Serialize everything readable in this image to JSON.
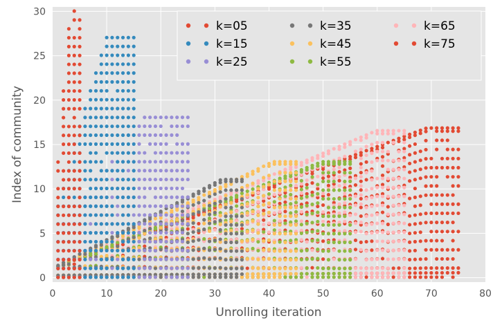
{
  "chart_data": {
    "type": "scatter",
    "title": "",
    "xlabel": "Unrolling iteration",
    "ylabel": "Index of community",
    "xlim": [
      0,
      80
    ],
    "ylim": [
      -0.5,
      30.5
    ],
    "x_ticks": [
      "0",
      "10",
      "20",
      "30",
      "40",
      "50",
      "60",
      "70",
      "80"
    ],
    "y_ticks": [
      "0",
      "5",
      "10",
      "15",
      "20",
      "25",
      "30"
    ],
    "grid": true,
    "background": "#e5e5e5",
    "legend": {
      "position": "top-right",
      "columns": 3
    },
    "series": [
      {
        "name": "k=05",
        "color": "#e24a33",
        "k": 5,
        "x_max": 5,
        "y_max": 30,
        "drift": 0.06,
        "points": [
          [
            1,
            2
          ],
          [
            1,
            10
          ],
          [
            2,
            30
          ],
          [
            3,
            30
          ],
          [
            4,
            29
          ],
          [
            5,
            30
          ],
          [
            2,
            22
          ],
          [
            3,
            17
          ],
          [
            5,
            5
          ],
          [
            3,
            1
          ],
          [
            5,
            0.5
          ]
        ]
      },
      {
        "name": "k=15",
        "color": "#348abd",
        "k": 15,
        "x_max": 15,
        "y_max": 27,
        "drift": 0.1,
        "points": [
          [
            1,
            19
          ],
          [
            2,
            10
          ],
          [
            5,
            27
          ],
          [
            10,
            27
          ],
          [
            15,
            27
          ],
          [
            8,
            22
          ],
          [
            12,
            18
          ],
          [
            15,
            14
          ],
          [
            10,
            5
          ],
          [
            15,
            1.5
          ],
          [
            15,
            0.4
          ]
        ]
      },
      {
        "name": "k=25",
        "color": "#988ed5",
        "k": 25,
        "x_max": 25,
        "y_max": 18,
        "drift": 0.12,
        "points": [
          [
            1,
            4
          ],
          [
            5,
            11
          ],
          [
            10,
            17
          ],
          [
            15,
            16
          ],
          [
            20,
            18
          ],
          [
            25,
            17
          ],
          [
            18,
            12
          ],
          [
            22,
            10
          ],
          [
            25,
            9
          ],
          [
            25,
            0.4
          ]
        ]
      },
      {
        "name": "k=35",
        "color": "#777777",
        "k": 35,
        "x_max": 35,
        "y_max": 11,
        "drift": 0.12,
        "points": [
          [
            5,
            4
          ],
          [
            15,
            7
          ],
          [
            25,
            10
          ],
          [
            30,
            11
          ],
          [
            35,
            11
          ],
          [
            35,
            0.5
          ]
        ]
      },
      {
        "name": "k=45",
        "color": "#fbc15e",
        "k": 45,
        "x_max": 45,
        "y_max": 13,
        "drift": 0.12,
        "points": [
          [
            5,
            3
          ],
          [
            15,
            5
          ],
          [
            25,
            8
          ],
          [
            35,
            12
          ],
          [
            40,
            13
          ],
          [
            45,
            13
          ],
          [
            45,
            0.5
          ]
        ]
      },
      {
        "name": "k=55",
        "color": "#8eba42",
        "k": 55,
        "x_max": 55,
        "y_max": 13,
        "drift": 0.12,
        "points": [
          [
            3,
            1
          ],
          [
            15,
            4
          ],
          [
            30,
            8
          ],
          [
            45,
            12
          ],
          [
            55,
            13
          ],
          [
            55,
            0.5
          ]
        ]
      },
      {
        "name": "k=65",
        "color": "#ffb5b8",
        "k": 65,
        "x_max": 65,
        "y_max": 16.5,
        "drift": 0.12,
        "points": [
          [
            5,
            2
          ],
          [
            20,
            6
          ],
          [
            40,
            11
          ],
          [
            55,
            14.5
          ],
          [
            60,
            16.5
          ],
          [
            65,
            16.5
          ],
          [
            65,
            0.6
          ]
        ]
      },
      {
        "name": "k=75",
        "color": "#e24a33",
        "k": 75,
        "x_max": 75,
        "y_max": 16.8,
        "drift": 0.12,
        "points": [
          [
            5,
            1
          ],
          [
            20,
            4
          ],
          [
            40,
            9
          ],
          [
            55,
            13
          ],
          [
            65,
            15.5
          ],
          [
            70,
            16.8
          ],
          [
            75,
            16.8
          ],
          [
            75,
            0.7
          ]
        ]
      }
    ]
  }
}
